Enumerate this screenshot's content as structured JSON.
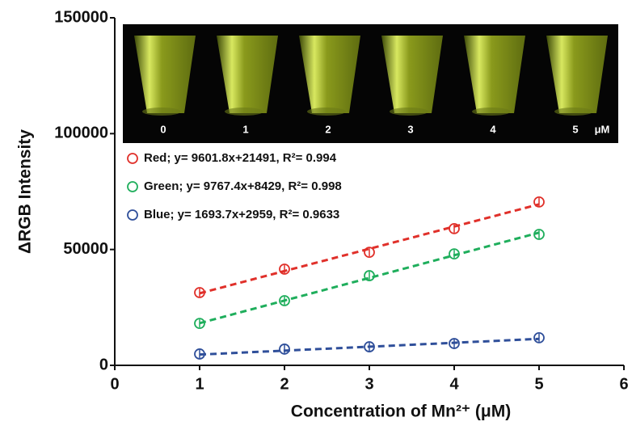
{
  "chart_data": {
    "type": "scatter",
    "x_label": "Concentration of Mn²⁺ (μM)",
    "y_label": "ΔRGB Intensity",
    "x": [
      1,
      2,
      3,
      4,
      5
    ],
    "series": [
      {
        "name": "Red; y= 9601.8x+21491, R²= 0.994",
        "color": "#e0302a",
        "values": [
          31400,
          41500,
          48800,
          59000,
          70500
        ],
        "slope": 9601.8,
        "intercept": 21491
      },
      {
        "name": "Green; y= 9767.4x+8429, R²= 0.998",
        "color": "#1fae5c",
        "values": [
          18100,
          27900,
          38700,
          48100,
          56500
        ],
        "slope": 9767.4,
        "intercept": 8429
      },
      {
        "name": "Blue; y= 1693.7x+2959, R²= 0.9633",
        "color": "#2f4f9a",
        "values": [
          4900,
          7000,
          8000,
          9400,
          11900
        ],
        "slope": 1693.7,
        "intercept": 2959
      }
    ],
    "xlim": [
      0,
      6
    ],
    "xticks": [
      0,
      1,
      2,
      3,
      4,
      5,
      6
    ],
    "ylim": [
      0,
      150000
    ],
    "yticks": [
      0,
      50000,
      100000,
      150000
    ],
    "inset_labels": [
      "0",
      "1",
      "2",
      "3",
      "4",
      "5"
    ],
    "inset_unit": "μM"
  }
}
